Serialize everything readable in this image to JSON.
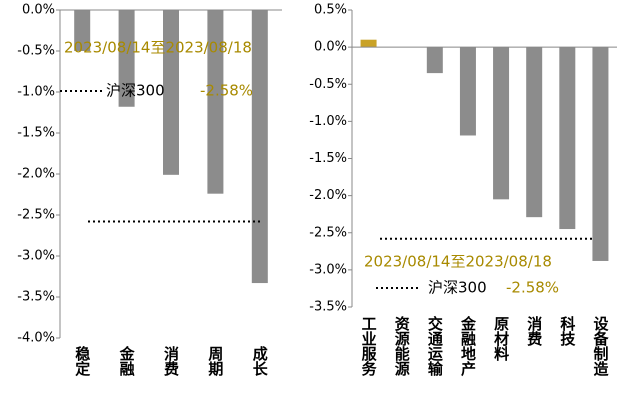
{
  "chart_data": [
    {
      "type": "bar",
      "categories": [
        "稳定",
        "金融",
        "消费",
        "周期",
        "成长"
      ],
      "values": [
        -0.5,
        -1.18,
        -2.01,
        -2.24,
        -3.33
      ],
      "colors": [
        "#8c8c8c",
        "#8c8c8c",
        "#8c8c8c",
        "#8c8c8c",
        "#8c8c8c"
      ],
      "ylim": [
        0,
        -4
      ],
      "yticks": [
        {
          "value": 0,
          "label": "0.0%"
        },
        {
          "value": -0.5,
          "label": "-0.5%"
        },
        {
          "value": -1,
          "label": "-1.0%"
        },
        {
          "value": -1.5,
          "label": "-1.5%"
        },
        {
          "value": -2,
          "label": "-2.0%"
        },
        {
          "value": -2.5,
          "label": "-2.5%"
        },
        {
          "value": -3,
          "label": "-3.0%"
        },
        {
          "value": -3.5,
          "label": "-3.5%"
        },
        {
          "value": -4,
          "label": "-4.0%"
        }
      ],
      "annotation": "2023/08/14至2023/08/18",
      "reference": {
        "name": "沪深300",
        "value": -2.58,
        "value_label": "-2.58%"
      }
    },
    {
      "type": "bar",
      "categories": [
        "工业服务",
        "资源能源",
        "交通运输",
        "金融地产",
        "原材料",
        "消费",
        "科技",
        "设备制造"
      ],
      "values": [
        0.1,
        0.0,
        -0.35,
        -1.19,
        -2.05,
        -2.29,
        -2.45,
        -2.88
      ],
      "colors": [
        "#c9a227",
        "#8c8c8c",
        "#8c8c8c",
        "#8c8c8c",
        "#8c8c8c",
        "#8c8c8c",
        "#8c8c8c",
        "#8c8c8c"
      ],
      "ylim": [
        0.5,
        -3.5
      ],
      "yticks": [
        {
          "value": 0.5,
          "label": "0.5%"
        },
        {
          "value": 0,
          "label": "0.0%"
        },
        {
          "value": -0.5,
          "label": "-0.5%"
        },
        {
          "value": -1,
          "label": "-1.0%"
        },
        {
          "value": -1.5,
          "label": "-1.5%"
        },
        {
          "value": -2,
          "label": "-2.0%"
        },
        {
          "value": -2.5,
          "label": "-2.5%"
        },
        {
          "value": -3,
          "label": "-3.0%"
        },
        {
          "value": -3.5,
          "label": "-3.5%"
        }
      ],
      "annotation": "2023/08/14至2023/08/18",
      "reference": {
        "name": "沪深300",
        "value": -2.58,
        "value_label": "-2.58%"
      }
    }
  ]
}
